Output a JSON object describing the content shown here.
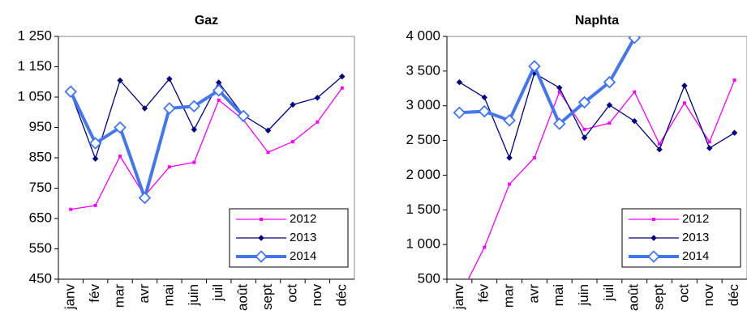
{
  "chart_data": [
    {
      "type": "line",
      "title": "Gaz",
      "categories": [
        "janv",
        "fév",
        "mar",
        "avr",
        "mai",
        "juin",
        "juil",
        "août",
        "sept",
        "oct",
        "nov",
        "déc"
      ],
      "series": [
        {
          "name": "2012",
          "color": "#ff00ff",
          "marker": "square",
          "values": [
            680,
            693,
            855,
            725,
            820,
            835,
            1040,
            975,
            868,
            903,
            968,
            1080
          ]
        },
        {
          "name": "2013",
          "color": "#000080",
          "marker": "diamond",
          "values": [
            1065,
            847,
            1105,
            1013,
            1110,
            943,
            1098,
            990,
            940,
            1025,
            1048,
            1118
          ]
        },
        {
          "name": "2014",
          "color": "#4477ee",
          "marker": "open-diamond",
          "values": [
            1068,
            898,
            950,
            718,
            1013,
            1020,
            1072,
            988,
            null,
            null,
            null,
            null
          ]
        }
      ],
      "ylim": [
        450,
        1250
      ],
      "yticks": [
        450,
        550,
        650,
        750,
        850,
        950,
        {
          "value": 1050,
          "label": "1 050"
        },
        {
          "value": 1150,
          "label": "1 150"
        },
        {
          "value": 1250,
          "label": "1 250"
        }
      ],
      "grid": false,
      "legend": "lower-right"
    },
    {
      "type": "line",
      "title": "Naphta",
      "categories": [
        "janv",
        "fév",
        "mar",
        "avr",
        "mai",
        "juin",
        "juil",
        "août",
        "sept",
        "oct",
        "nov",
        "déc"
      ],
      "series": [
        {
          "name": "2012",
          "color": "#ff00ff",
          "marker": "square",
          "values": [
            250,
            960,
            1870,
            2250,
            3200,
            2660,
            2750,
            3200,
            2450,
            3040,
            2480,
            3370
          ]
        },
        {
          "name": "2013",
          "color": "#000080",
          "marker": "diamond",
          "values": [
            3340,
            3120,
            2250,
            3470,
            3260,
            2540,
            3010,
            2780,
            2370,
            3290,
            2390,
            2610
          ]
        },
        {
          "name": "2014",
          "color": "#4477ee",
          "marker": "open-diamond",
          "values": [
            2900,
            2920,
            2790,
            3570,
            2740,
            3050,
            3340,
            3980,
            null,
            null,
            null,
            null
          ]
        }
      ],
      "ylim": [
        500,
        4000
      ],
      "yticks": [
        500,
        {
          "value": 1000,
          "label": "1 000"
        },
        {
          "value": 1500,
          "label": "1 500"
        },
        {
          "value": 2000,
          "label": "2 000"
        },
        {
          "value": 2500,
          "label": "2 500"
        },
        {
          "value": 3000,
          "label": "3 000"
        },
        {
          "value": 3500,
          "label": "3 500"
        },
        {
          "value": 4000,
          "label": "4 000"
        }
      ],
      "grid": false,
      "legend": "lower-right"
    }
  ]
}
